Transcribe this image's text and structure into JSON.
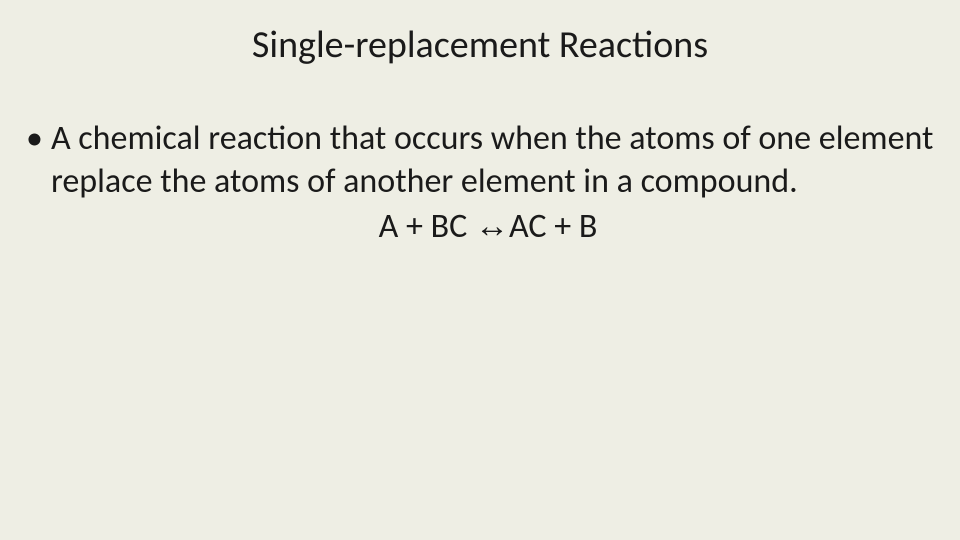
{
  "slide": {
    "background_color": "#eeeee4",
    "text_color": "#1a1a1a",
    "title": "Single-replacement Reactions",
    "title_fontsize": 38,
    "body_fontsize": 34,
    "bullet1": {
      "marker": "•",
      "text": "A chemical reaction that occurs when the atoms of one element replace the atoms of another element in a compound."
    },
    "formula": {
      "lhs": "A + BC ",
      "arrow": "↔",
      "rhs": "AC + B"
    }
  }
}
